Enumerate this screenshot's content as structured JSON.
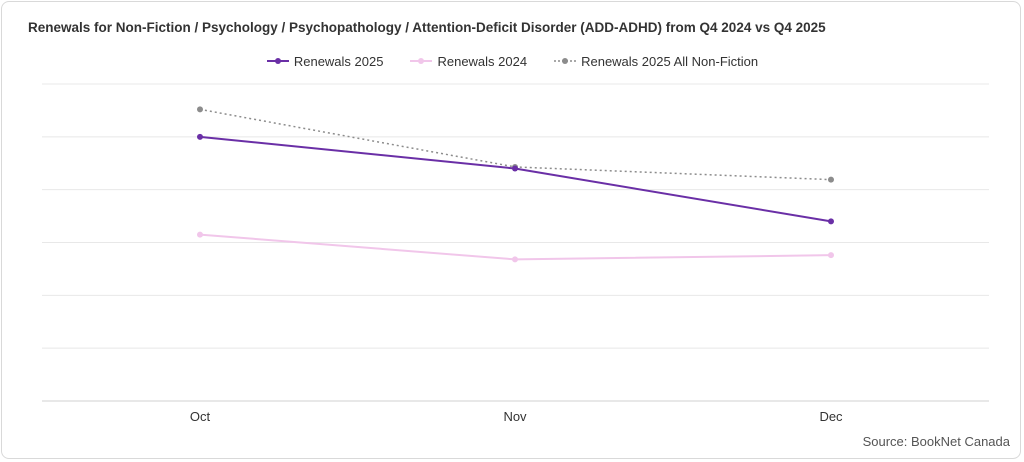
{
  "chart_data": {
    "type": "line",
    "title": "Renewals  for Non-Fiction / Psychology / Psychopathology / Attention-Deficit Disorder (ADD-ADHD) from Q4 2024 vs Q4 2025",
    "categories": [
      "Oct",
      "Nov",
      "Dec"
    ],
    "series": [
      {
        "name": "Renewals 2025",
        "values": [
          5.0,
          4.4,
          3.4
        ],
        "color": "#6a2fa6",
        "style": "solid"
      },
      {
        "name": "Renewals 2024",
        "values": [
          3.15,
          2.68,
          2.76
        ],
        "color": "#f1c6ea",
        "style": "solid"
      },
      {
        "name": "Renewals 2025 All Non-Fiction",
        "values": [
          5.52,
          4.43,
          4.19
        ],
        "color": "#8c8c8c",
        "style": "dotted"
      }
    ],
    "ylim": [
      0,
      6
    ],
    "grid": true,
    "y_tick_labels_shown": false,
    "legend_position": "top-center",
    "source": "Source: BookNet Canada"
  }
}
